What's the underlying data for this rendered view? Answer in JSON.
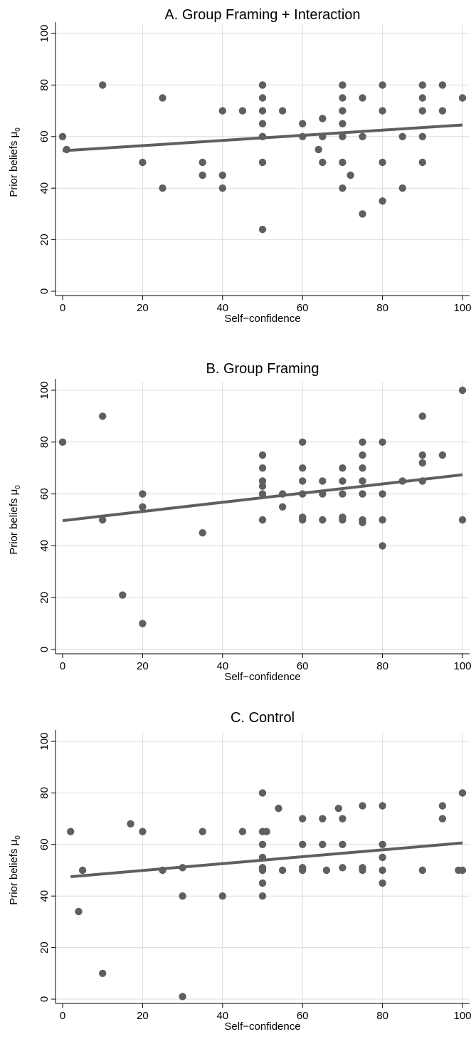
{
  "colors": {
    "points": "#5f5f5f",
    "fit_line": "#5f5f5f",
    "grid": "#dcdcdc",
    "background": "#ffffff"
  },
  "chart_data": [
    {
      "type": "scatter",
      "title": "A. Group Framing + Interaction",
      "xlabel": "Self−confidence",
      "ylabel": "Prior beliefs μ",
      "ylabel_subscript": "0",
      "xlim": [
        0,
        100
      ],
      "ylim": [
        0,
        100
      ],
      "xticks": [
        0,
        20,
        40,
        60,
        80,
        100
      ],
      "yticks": [
        0,
        20,
        40,
        60,
        80,
        100
      ],
      "grid": true,
      "points": [
        [
          0,
          60
        ],
        [
          1,
          55
        ],
        [
          10,
          80
        ],
        [
          20,
          50
        ],
        [
          25,
          75
        ],
        [
          25,
          40
        ],
        [
          35,
          50
        ],
        [
          35,
          45
        ],
        [
          40,
          70
        ],
        [
          40,
          45
        ],
        [
          40,
          40
        ],
        [
          45,
          70
        ],
        [
          50,
          80
        ],
        [
          50,
          75
        ],
        [
          50,
          70
        ],
        [
          50,
          65
        ],
        [
          50,
          60
        ],
        [
          50,
          60
        ],
        [
          50,
          50
        ],
        [
          50,
          24
        ],
        [
          55,
          70
        ],
        [
          60,
          65
        ],
        [
          60,
          60
        ],
        [
          64,
          55
        ],
        [
          65,
          67
        ],
        [
          65,
          60
        ],
        [
          65,
          50
        ],
        [
          70,
          80
        ],
        [
          70,
          75
        ],
        [
          70,
          70
        ],
        [
          70,
          65
        ],
        [
          70,
          60
        ],
        [
          70,
          50
        ],
        [
          70,
          40
        ],
        [
          72,
          45
        ],
        [
          75,
          75
        ],
        [
          75,
          60
        ],
        [
          75,
          30
        ],
        [
          80,
          80
        ],
        [
          80,
          70
        ],
        [
          80,
          50
        ],
        [
          80,
          35
        ],
        [
          85,
          60
        ],
        [
          85,
          40
        ],
        [
          90,
          80
        ],
        [
          90,
          75
        ],
        [
          90,
          70
        ],
        [
          90,
          60
        ],
        [
          90,
          50
        ],
        [
          95,
          80
        ],
        [
          95,
          70
        ],
        [
          100,
          75
        ]
      ],
      "fit_line": [
        [
          0,
          54.5
        ],
        [
          100,
          64.5
        ]
      ]
    },
    {
      "type": "scatter",
      "title": "B. Group Framing",
      "xlabel": "Self−confidence",
      "ylabel": "Prior beliefs μ",
      "ylabel_subscript": "0",
      "xlim": [
        0,
        100
      ],
      "ylim": [
        0,
        100
      ],
      "xticks": [
        0,
        20,
        40,
        60,
        80,
        100
      ],
      "yticks": [
        0,
        20,
        40,
        60,
        80,
        100
      ],
      "grid": true,
      "points": [
        [
          0,
          80
        ],
        [
          10,
          90
        ],
        [
          10,
          50
        ],
        [
          15,
          21
        ],
        [
          20,
          60
        ],
        [
          20,
          55
        ],
        [
          20,
          10
        ],
        [
          35,
          45
        ],
        [
          50,
          75
        ],
        [
          50,
          70
        ],
        [
          50,
          65
        ],
        [
          50,
          63
        ],
        [
          50,
          60
        ],
        [
          50,
          50
        ],
        [
          55,
          60
        ],
        [
          55,
          55
        ],
        [
          60,
          80
        ],
        [
          60,
          70
        ],
        [
          60,
          65
        ],
        [
          60,
          60
        ],
        [
          60,
          51
        ],
        [
          60,
          50
        ],
        [
          65,
          65
        ],
        [
          65,
          60
        ],
        [
          65,
          50
        ],
        [
          70,
          70
        ],
        [
          70,
          65
        ],
        [
          70,
          60
        ],
        [
          70,
          51
        ],
        [
          70,
          50
        ],
        [
          75,
          80
        ],
        [
          75,
          75
        ],
        [
          75,
          70
        ],
        [
          75,
          65
        ],
        [
          75,
          60
        ],
        [
          75,
          50
        ],
        [
          75,
          49
        ],
        [
          80,
          80
        ],
        [
          80,
          60
        ],
        [
          80,
          50
        ],
        [
          80,
          40
        ],
        [
          85,
          65
        ],
        [
          90,
          90
        ],
        [
          90,
          75
        ],
        [
          90,
          72
        ],
        [
          90,
          65
        ],
        [
          95,
          75
        ],
        [
          100,
          100
        ],
        [
          100,
          50
        ]
      ],
      "fit_line": [
        [
          0,
          49.7
        ],
        [
          100,
          67.4
        ]
      ]
    },
    {
      "type": "scatter",
      "title": "C. Control",
      "xlabel": "Self−confidence",
      "ylabel": "Prior beliefs μ",
      "ylabel_subscript": "0",
      "xlim": [
        0,
        100
      ],
      "ylim": [
        0,
        100
      ],
      "xticks": [
        0,
        20,
        40,
        60,
        80,
        100
      ],
      "yticks": [
        0,
        20,
        40,
        60,
        80,
        100
      ],
      "grid": true,
      "points": [
        [
          2,
          65
        ],
        [
          4,
          34
        ],
        [
          5,
          50
        ],
        [
          10,
          10
        ],
        [
          17,
          68
        ],
        [
          20,
          65
        ],
        [
          25,
          50
        ],
        [
          30,
          51
        ],
        [
          30,
          40
        ],
        [
          30,
          1
        ],
        [
          35,
          65
        ],
        [
          40,
          40
        ],
        [
          45,
          65
        ],
        [
          50,
          80
        ],
        [
          50,
          65
        ],
        [
          50,
          60
        ],
        [
          50,
          55
        ],
        [
          50,
          51
        ],
        [
          50,
          50
        ],
        [
          50,
          45
        ],
        [
          50,
          40
        ],
        [
          51,
          65
        ],
        [
          54,
          74
        ],
        [
          55,
          50
        ],
        [
          60,
          70
        ],
        [
          60,
          60
        ],
        [
          60,
          51
        ],
        [
          60,
          50
        ],
        [
          65,
          70
        ],
        [
          65,
          60
        ],
        [
          66,
          50
        ],
        [
          69,
          74
        ],
        [
          70,
          70
        ],
        [
          70,
          60
        ],
        [
          70,
          51
        ],
        [
          75,
          75
        ],
        [
          75,
          51
        ],
        [
          75,
          50
        ],
        [
          80,
          75
        ],
        [
          80,
          60
        ],
        [
          80,
          55
        ],
        [
          80,
          50
        ],
        [
          80,
          45
        ],
        [
          90,
          50
        ],
        [
          95,
          75
        ],
        [
          95,
          70
        ],
        [
          99,
          50
        ],
        [
          100,
          80
        ],
        [
          100,
          50
        ]
      ],
      "fit_line": [
        [
          2,
          47.5
        ],
        [
          100,
          60.6
        ]
      ]
    }
  ]
}
